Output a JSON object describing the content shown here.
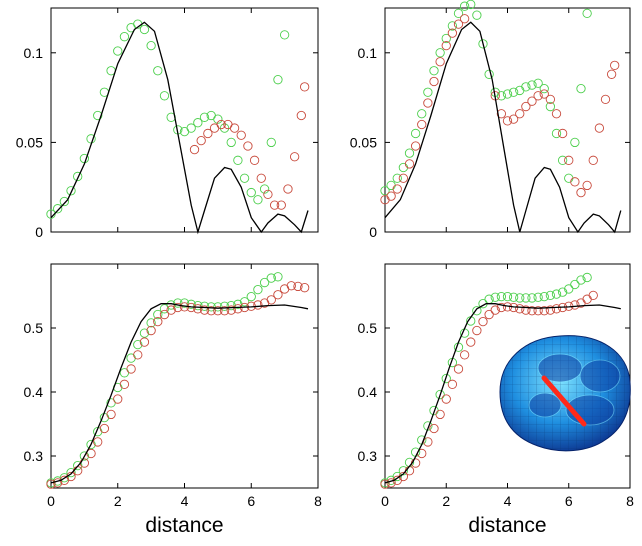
{
  "chart_data": [
    {
      "type": "scatter",
      "xlim": [
        0,
        8
      ],
      "ylim": [
        0,
        0.125
      ],
      "yticks": [
        "0",
        "0.05",
        "0.1"
      ],
      "xticks": [],
      "xlabel": "",
      "grid": false,
      "legend": "none",
      "colors": {
        "line": "#000000",
        "green": "#4ccf4c",
        "red": "#c84a3c"
      },
      "series": [
        {
          "kind": "line",
          "color": "line",
          "x": [
            0.0,
            0.5,
            1.0,
            1.5,
            2.0,
            2.5,
            2.8,
            3.1,
            3.5,
            3.9,
            4.2,
            4.4,
            4.6,
            4.9,
            5.2,
            5.4,
            5.7,
            6.0,
            6.3,
            6.5,
            6.8,
            7.0,
            7.3,
            7.5,
            7.7
          ],
          "y": [
            0.008,
            0.018,
            0.038,
            0.065,
            0.094,
            0.113,
            0.117,
            0.112,
            0.085,
            0.045,
            0.015,
            0.0,
            0.012,
            0.03,
            0.036,
            0.035,
            0.025,
            0.008,
            0.0,
            0.005,
            0.01,
            0.009,
            0.004,
            0.0,
            0.012
          ]
        },
        {
          "kind": "markers",
          "color": "green",
          "x": [
            0.0,
            0.2,
            0.4,
            0.6,
            0.8,
            1.0,
            1.2,
            1.4,
            1.6,
            1.8,
            2.0,
            2.2,
            2.4,
            2.6,
            2.8,
            3.0,
            3.2,
            3.4,
            3.6,
            3.8,
            4.0,
            4.2,
            4.4,
            4.6,
            4.8,
            5.0,
            5.2,
            5.4,
            5.6,
            5.8,
            6.0,
            6.2,
            6.4,
            6.6,
            6.8,
            7.0
          ],
          "y": [
            0.01,
            0.013,
            0.017,
            0.023,
            0.031,
            0.041,
            0.052,
            0.065,
            0.078,
            0.09,
            0.101,
            0.109,
            0.114,
            0.116,
            0.113,
            0.104,
            0.09,
            0.076,
            0.064,
            0.057,
            0.056,
            0.058,
            0.061,
            0.064,
            0.065,
            0.063,
            0.058,
            0.05,
            0.04,
            0.03,
            0.022,
            0.018,
            0.024,
            0.05,
            0.085,
            0.11
          ]
        },
        {
          "kind": "markers",
          "color": "red",
          "x": [
            4.3,
            4.5,
            4.7,
            4.9,
            5.1,
            5.3,
            5.5,
            5.7,
            5.9,
            6.1,
            6.3,
            6.5,
            6.7,
            6.9,
            7.1,
            7.3,
            7.5,
            7.6
          ],
          "y": [
            0.046,
            0.051,
            0.055,
            0.058,
            0.06,
            0.06,
            0.058,
            0.054,
            0.048,
            0.04,
            0.03,
            0.021,
            0.015,
            0.015,
            0.024,
            0.042,
            0.065,
            0.081
          ]
        }
      ]
    },
    {
      "type": "scatter",
      "xlim": [
        0,
        8
      ],
      "ylim": [
        0,
        0.125
      ],
      "yticks": [
        "0",
        "0.05",
        "0.1"
      ],
      "xticks": [],
      "xlabel": "",
      "grid": false,
      "legend": "none",
      "colors": {
        "line": "#000000",
        "green": "#4ccf4c",
        "red": "#c84a3c"
      },
      "series": [
        {
          "kind": "line",
          "color": "line",
          "x": [
            0.0,
            0.5,
            1.0,
            1.5,
            2.0,
            2.5,
            2.8,
            3.1,
            3.5,
            3.9,
            4.2,
            4.4,
            4.6,
            4.9,
            5.2,
            5.4,
            5.7,
            6.0,
            6.3,
            6.5,
            6.8,
            7.0,
            7.3,
            7.5,
            7.7
          ],
          "y": [
            0.008,
            0.018,
            0.038,
            0.065,
            0.094,
            0.113,
            0.117,
            0.112,
            0.085,
            0.045,
            0.015,
            0.0,
            0.012,
            0.03,
            0.036,
            0.035,
            0.025,
            0.008,
            0.0,
            0.005,
            0.01,
            0.009,
            0.004,
            0.0,
            0.012
          ]
        },
        {
          "kind": "markers",
          "color": "green",
          "x": [
            0.0,
            0.2,
            0.4,
            0.6,
            0.8,
            1.0,
            1.2,
            1.4,
            1.6,
            1.8,
            2.0,
            2.2,
            2.4,
            2.6,
            2.8,
            3.0,
            3.2,
            3.4,
            3.6,
            3.8,
            4.0,
            4.2,
            4.4,
            4.6,
            4.8,
            5.0,
            5.2,
            5.4,
            5.6,
            5.8,
            6.0,
            6.2,
            6.4,
            6.6
          ],
          "y": [
            0.023,
            0.026,
            0.03,
            0.036,
            0.044,
            0.055,
            0.066,
            0.078,
            0.09,
            0.1,
            0.108,
            0.115,
            0.122,
            0.126,
            0.127,
            0.121,
            0.105,
            0.088,
            0.078,
            0.076,
            0.077,
            0.078,
            0.079,
            0.081,
            0.082,
            0.083,
            0.08,
            0.07,
            0.055,
            0.04,
            0.03,
            0.05,
            0.08,
            0.122
          ]
        },
        {
          "kind": "markers",
          "color": "red",
          "x": [
            0.0,
            0.2,
            0.4,
            0.6,
            0.8,
            1.0,
            1.2,
            1.4,
            1.6,
            1.8,
            2.0,
            2.2,
            2.4,
            2.6,
            3.6,
            3.8,
            4.0,
            4.2,
            4.4,
            4.6,
            4.8,
            5.0,
            5.2,
            5.4,
            5.6,
            5.8,
            6.0,
            6.2,
            6.4,
            6.6,
            6.8,
            7.0,
            7.2,
            7.4,
            7.5
          ],
          "y": [
            0.018,
            0.02,
            0.024,
            0.03,
            0.038,
            0.048,
            0.06,
            0.072,
            0.084,
            0.095,
            0.104,
            0.111,
            0.116,
            0.119,
            0.076,
            0.066,
            0.062,
            0.063,
            0.066,
            0.07,
            0.073,
            0.076,
            0.077,
            0.074,
            0.066,
            0.055,
            0.04,
            0.028,
            0.022,
            0.026,
            0.04,
            0.058,
            0.074,
            0.088,
            0.093
          ]
        }
      ]
    },
    {
      "type": "scatter",
      "xlim": [
        0,
        8
      ],
      "ylim": [
        0.25,
        0.6
      ],
      "yticks": [
        "0.3",
        "0.4",
        "0.5"
      ],
      "xticks": [
        "0",
        "2",
        "4",
        "6",
        "8"
      ],
      "xlabel": "distance",
      "grid": false,
      "legend": "none",
      "colors": {
        "line": "#000000",
        "green": "#4ccf4c",
        "red": "#c84a3c"
      },
      "series": [
        {
          "kind": "line",
          "color": "line",
          "x": [
            0.0,
            0.3,
            0.6,
            0.9,
            1.2,
            1.5,
            1.8,
            2.1,
            2.4,
            2.7,
            3.0,
            3.3,
            3.6,
            3.9,
            4.2,
            4.6,
            5.0,
            5.5,
            6.0,
            6.5,
            7.0,
            7.5,
            7.7
          ],
          "y": [
            0.258,
            0.262,
            0.272,
            0.29,
            0.318,
            0.355,
            0.395,
            0.438,
            0.478,
            0.51,
            0.53,
            0.538,
            0.538,
            0.535,
            0.533,
            0.532,
            0.531,
            0.532,
            0.533,
            0.535,
            0.536,
            0.532,
            0.53
          ]
        },
        {
          "kind": "markers",
          "color": "green",
          "x": [
            0.0,
            0.2,
            0.4,
            0.6,
            0.8,
            1.0,
            1.2,
            1.4,
            1.6,
            1.8,
            2.0,
            2.2,
            2.4,
            2.6,
            2.8,
            3.0,
            3.2,
            3.4,
            3.6,
            3.8,
            4.0,
            4.2,
            4.4,
            4.6,
            4.8,
            5.0,
            5.2,
            5.4,
            5.6,
            5.8,
            6.0,
            6.2,
            6.4,
            6.6,
            6.8
          ],
          "y": [
            0.258,
            0.261,
            0.266,
            0.274,
            0.285,
            0.3,
            0.318,
            0.338,
            0.36,
            0.383,
            0.407,
            0.43,
            0.453,
            0.474,
            0.492,
            0.508,
            0.521,
            0.53,
            0.536,
            0.539,
            0.539,
            0.537,
            0.535,
            0.534,
            0.533,
            0.533,
            0.534,
            0.535,
            0.537,
            0.541,
            0.549,
            0.56,
            0.571,
            0.578,
            0.58
          ]
        },
        {
          "kind": "markers",
          "color": "red",
          "x": [
            0.0,
            0.2,
            0.4,
            0.6,
            0.8,
            1.0,
            1.2,
            1.4,
            1.6,
            1.8,
            2.0,
            2.2,
            2.4,
            2.6,
            2.8,
            3.0,
            3.2,
            3.4,
            3.6,
            3.8,
            4.0,
            4.2,
            4.4,
            4.6,
            4.8,
            5.0,
            5.2,
            5.4,
            5.6,
            5.8,
            6.0,
            6.2,
            6.4,
            6.6,
            6.8,
            7.0,
            7.2,
            7.4,
            7.6
          ],
          "y": [
            0.256,
            0.258,
            0.262,
            0.268,
            0.277,
            0.289,
            0.304,
            0.322,
            0.343,
            0.365,
            0.389,
            0.412,
            0.436,
            0.458,
            0.478,
            0.496,
            0.51,
            0.521,
            0.528,
            0.532,
            0.533,
            0.532,
            0.53,
            0.528,
            0.527,
            0.527,
            0.527,
            0.528,
            0.53,
            0.532,
            0.534,
            0.536,
            0.539,
            0.544,
            0.552,
            0.561,
            0.566,
            0.565,
            0.563
          ]
        }
      ]
    },
    {
      "type": "scatter",
      "xlim": [
        0,
        8
      ],
      "ylim": [
        0.25,
        0.6
      ],
      "yticks": [
        "0.3",
        "0.4",
        "0.5"
      ],
      "xticks": [
        "0",
        "2",
        "4",
        "6",
        "8"
      ],
      "xlabel": "distance",
      "grid": false,
      "legend": "none",
      "colors": {
        "line": "#000000",
        "green": "#4ccf4c",
        "red": "#c84a3c"
      },
      "series": [
        {
          "kind": "line",
          "color": "line",
          "x": [
            0.0,
            0.3,
            0.6,
            0.9,
            1.2,
            1.5,
            1.8,
            2.1,
            2.4,
            2.7,
            3.0,
            3.3,
            3.6,
            3.9,
            4.2,
            4.6,
            5.0,
            5.5,
            6.0,
            6.5,
            7.0,
            7.5,
            7.7
          ],
          "y": [
            0.258,
            0.262,
            0.272,
            0.29,
            0.318,
            0.355,
            0.395,
            0.438,
            0.478,
            0.51,
            0.53,
            0.538,
            0.538,
            0.535,
            0.533,
            0.532,
            0.531,
            0.532,
            0.533,
            0.535,
            0.536,
            0.532,
            0.53
          ]
        },
        {
          "kind": "markers",
          "color": "green",
          "x": [
            0.0,
            0.2,
            0.4,
            0.6,
            0.8,
            1.0,
            1.2,
            1.4,
            1.6,
            1.8,
            2.0,
            2.2,
            2.4,
            2.6,
            2.8,
            3.0,
            3.2,
            3.4,
            3.6,
            3.8,
            4.0,
            4.2,
            4.4,
            4.6,
            4.8,
            5.0,
            5.2,
            5.4,
            5.6,
            5.8,
            6.0,
            6.2,
            6.4,
            6.6
          ],
          "y": [
            0.258,
            0.262,
            0.268,
            0.277,
            0.29,
            0.306,
            0.325,
            0.347,
            0.371,
            0.396,
            0.421,
            0.446,
            0.47,
            0.492,
            0.511,
            0.527,
            0.538,
            0.545,
            0.548,
            0.549,
            0.549,
            0.548,
            0.547,
            0.547,
            0.547,
            0.548,
            0.549,
            0.551,
            0.553,
            0.556,
            0.561,
            0.568,
            0.575,
            0.579
          ]
        },
        {
          "kind": "markers",
          "color": "red",
          "x": [
            0.0,
            0.2,
            0.4,
            0.6,
            0.8,
            1.0,
            1.2,
            1.4,
            1.6,
            1.8,
            2.0,
            2.2,
            2.4,
            2.6,
            2.8,
            3.0,
            3.2,
            3.4,
            3.6,
            3.8,
            4.0,
            4.2,
            4.4,
            4.6,
            4.8,
            5.0,
            5.2,
            5.4,
            5.6,
            5.8,
            6.0,
            6.2,
            6.4,
            6.6,
            6.8
          ],
          "y": [
            0.256,
            0.258,
            0.262,
            0.268,
            0.277,
            0.289,
            0.304,
            0.322,
            0.343,
            0.365,
            0.389,
            0.412,
            0.436,
            0.458,
            0.478,
            0.496,
            0.51,
            0.521,
            0.528,
            0.532,
            0.533,
            0.532,
            0.53,
            0.528,
            0.527,
            0.527,
            0.527,
            0.528,
            0.53,
            0.532,
            0.534,
            0.536,
            0.539,
            0.545,
            0.551
          ]
        }
      ]
    }
  ]
}
